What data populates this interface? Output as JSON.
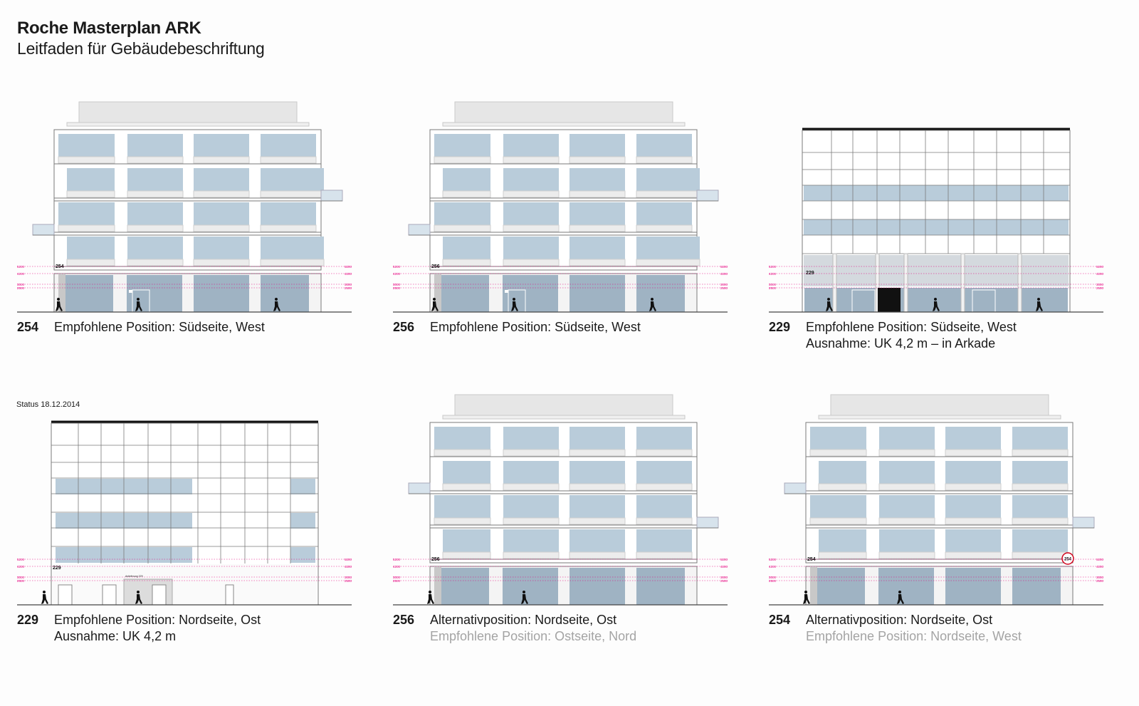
{
  "header": {
    "title": "Roche Masterplan ARK",
    "subtitle": "Leitfaden für Gebäudebeschriftung"
  },
  "status": "Status 18.12.2014",
  "colors": {
    "glass": "#b9ccda",
    "glass_dark": "#9fb3c3",
    "facade": "#ffffff",
    "outline": "#7a7a7a",
    "roof": "#e6e6e6",
    "dimension": "#e6007e",
    "marker": "#d0021b",
    "ground": "#444444",
    "black_panel": "#111111"
  },
  "dim_labels": {
    "left": [
      "5200",
      "4200",
      "3000",
      "2500"
    ],
    "right": [
      "5200",
      "4200",
      "3000",
      "2500"
    ]
  },
  "panels": [
    {
      "id": "p1",
      "type": "office",
      "mirror": false,
      "number": "254",
      "sign_text": "254",
      "sign_side": "left",
      "caption_lines": [
        "Empfohlene Position: Südseite, West"
      ],
      "caption_grey": [],
      "marker": false
    },
    {
      "id": "p2",
      "type": "office",
      "mirror": false,
      "number": "256",
      "sign_text": "256",
      "sign_side": "left",
      "caption_lines": [
        "Empfohlene Position: Südseite, West"
      ],
      "caption_grey": [],
      "marker": false
    },
    {
      "id": "p3",
      "type": "grid",
      "variant": "south",
      "number": "229",
      "sign_text": "229",
      "caption_lines": [
        "Empfohlene Position: Südseite, West",
        "Ausnahme: UK 4,2 m – in Arkade"
      ],
      "caption_grey": [],
      "marker": false
    },
    {
      "id": "p4",
      "type": "grid",
      "variant": "north",
      "number": "229",
      "sign_text": "229",
      "door_label": "Anlieferung 229",
      "caption_lines": [
        "Empfohlene Position: Nordseite, Ost",
        "Ausnahme: UK 4,2 m"
      ],
      "caption_grey": [],
      "marker": false
    },
    {
      "id": "p5",
      "type": "office",
      "mirror": true,
      "number": "256",
      "sign_text": "256",
      "sign_side": "left",
      "caption_lines": [
        "Alternativposition: Nordseite, Ost"
      ],
      "caption_grey": [
        "Empfohlene Position: Ostseite, Nord"
      ],
      "marker": false
    },
    {
      "id": "p6",
      "type": "office",
      "mirror": true,
      "number": "254",
      "sign_text": "254",
      "sign_side": "left",
      "marker_text": "254",
      "caption_lines": [
        "Alternativposition: Nordseite, Ost"
      ],
      "caption_grey": [
        "Empfohlene Position: Nordseite, West"
      ],
      "marker": true
    }
  ]
}
